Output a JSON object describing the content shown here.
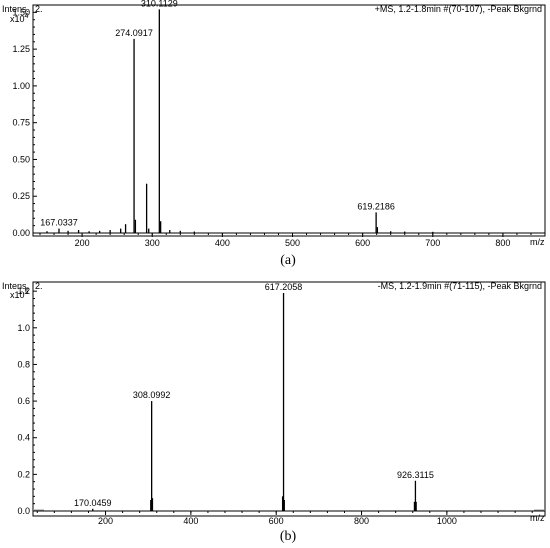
{
  "chart_data": [
    {
      "type": "bar",
      "panel_caption": "(a)",
      "y_label": "Intens.",
      "y_multiplier": "x10",
      "y_multiplier_exp": "4",
      "panel_marker": "2.",
      "header": "+MS, 1.2-1.8min #(70-107), -Peak Bkgrnd",
      "x_unit": "m/z",
      "xlim": [
        130,
        860
      ],
      "ylim": [
        0,
        1.55
      ],
      "x_ticks": [
        200,
        300,
        400,
        500,
        600,
        700,
        800
      ],
      "y_ticks": [
        "0.00",
        "0.25",
        "0.50",
        "0.75",
        "1.00",
        "1.25",
        "1.50"
      ],
      "peaks": [
        {
          "mz": 150,
          "value": 0.012
        },
        {
          "mz": 167.0337,
          "value": 0.03,
          "label": "167.0337"
        },
        {
          "mz": 180,
          "value": 0.015
        },
        {
          "mz": 195,
          "value": 0.02
        },
        {
          "mz": 210,
          "value": 0.012
        },
        {
          "mz": 225,
          "value": 0.015
        },
        {
          "mz": 240,
          "value": 0.02
        },
        {
          "mz": 255,
          "value": 0.03
        },
        {
          "mz": 262,
          "value": 0.06
        },
        {
          "mz": 274.0917,
          "value": 1.32,
          "label": "274.0917"
        },
        {
          "mz": 276,
          "value": 0.09
        },
        {
          "mz": 292,
          "value": 0.335
        },
        {
          "mz": 295,
          "value": 0.03
        },
        {
          "mz": 310.1129,
          "value": 1.52,
          "label": "310.1129"
        },
        {
          "mz": 312,
          "value": 0.08
        },
        {
          "mz": 325,
          "value": 0.02
        },
        {
          "mz": 340,
          "value": 0.015
        },
        {
          "mz": 360,
          "value": 0.01
        },
        {
          "mz": 619.2186,
          "value": 0.14,
          "label": "619.2186"
        },
        {
          "mz": 621,
          "value": 0.04
        },
        {
          "mz": 640,
          "value": 0.012
        },
        {
          "mz": 660,
          "value": 0.01
        },
        {
          "mz": 700,
          "value": 0.008
        }
      ]
    },
    {
      "type": "bar",
      "panel_caption": "(b)",
      "y_label": "Intens.",
      "y_multiplier": "x10",
      "y_multiplier_exp": "5",
      "panel_marker": "2.",
      "header": "-MS, 1.2-1.9min #(71-115), -Peak Bkgrnd",
      "x_unit": "m/z",
      "xlim": [
        30,
        1230
      ],
      "ylim": [
        0,
        1.25
      ],
      "x_ticks": [
        200,
        400,
        600,
        800,
        1000
      ],
      "y_ticks": [
        "0.0",
        "0.2",
        "0.4",
        "0.6",
        "0.8",
        "1.0",
        "1.2"
      ],
      "peaks": [
        {
          "mz": 170.0459,
          "value": 0.012,
          "label": "170.0459"
        },
        {
          "mz": 306,
          "value": 0.06
        },
        {
          "mz": 308.0992,
          "value": 0.6,
          "label": "308.0992"
        },
        {
          "mz": 310,
          "value": 0.07
        },
        {
          "mz": 615,
          "value": 0.08
        },
        {
          "mz": 617.2058,
          "value": 1.19,
          "label": "617.2058"
        },
        {
          "mz": 619,
          "value": 0.06
        },
        {
          "mz": 924,
          "value": 0.05
        },
        {
          "mz": 926.3115,
          "value": 0.165,
          "label": "926.3115"
        },
        {
          "mz": 928,
          "value": 0.05
        }
      ]
    }
  ]
}
